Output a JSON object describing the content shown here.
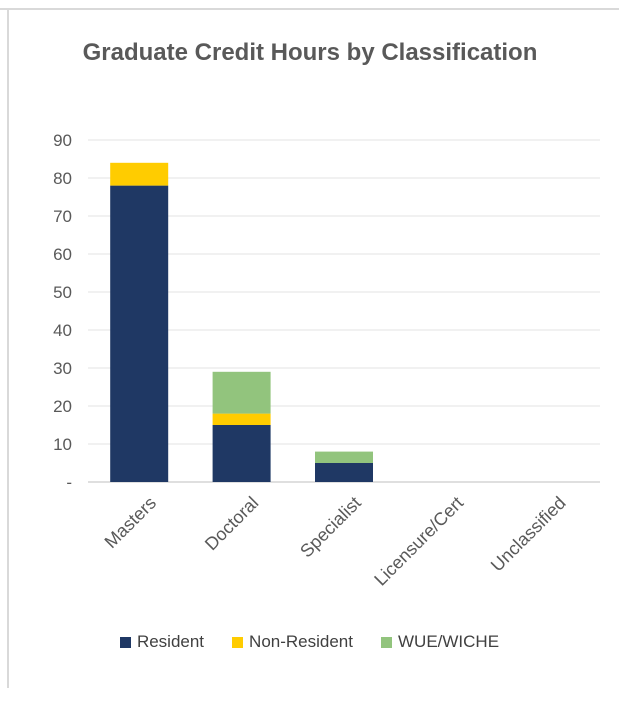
{
  "chart_data": {
    "type": "bar",
    "stacked": true,
    "title": "Graduate Credit Hours by Classification",
    "xlabel": "",
    "ylabel": "",
    "ylim": [
      0,
      90
    ],
    "yticks": [
      "-",
      "10",
      "20",
      "30",
      "40",
      "50",
      "60",
      "70",
      "80",
      "90"
    ],
    "categories": [
      "Masters",
      "Doctoral",
      "Specialist",
      "Licensure/Cert",
      "Unclassified"
    ],
    "series": [
      {
        "name": "Resident",
        "color": "#1f3864",
        "values": [
          78,
          15,
          5,
          0,
          0
        ]
      },
      {
        "name": "Non-Resident",
        "color": "#ffcc00",
        "values": [
          6,
          3,
          0,
          0,
          0
        ]
      },
      {
        "name": "WUE/WICHE",
        "color": "#92c47d",
        "values": [
          0,
          11,
          3,
          0,
          0
        ]
      }
    ],
    "grid": true,
    "legend_position": "bottom"
  }
}
